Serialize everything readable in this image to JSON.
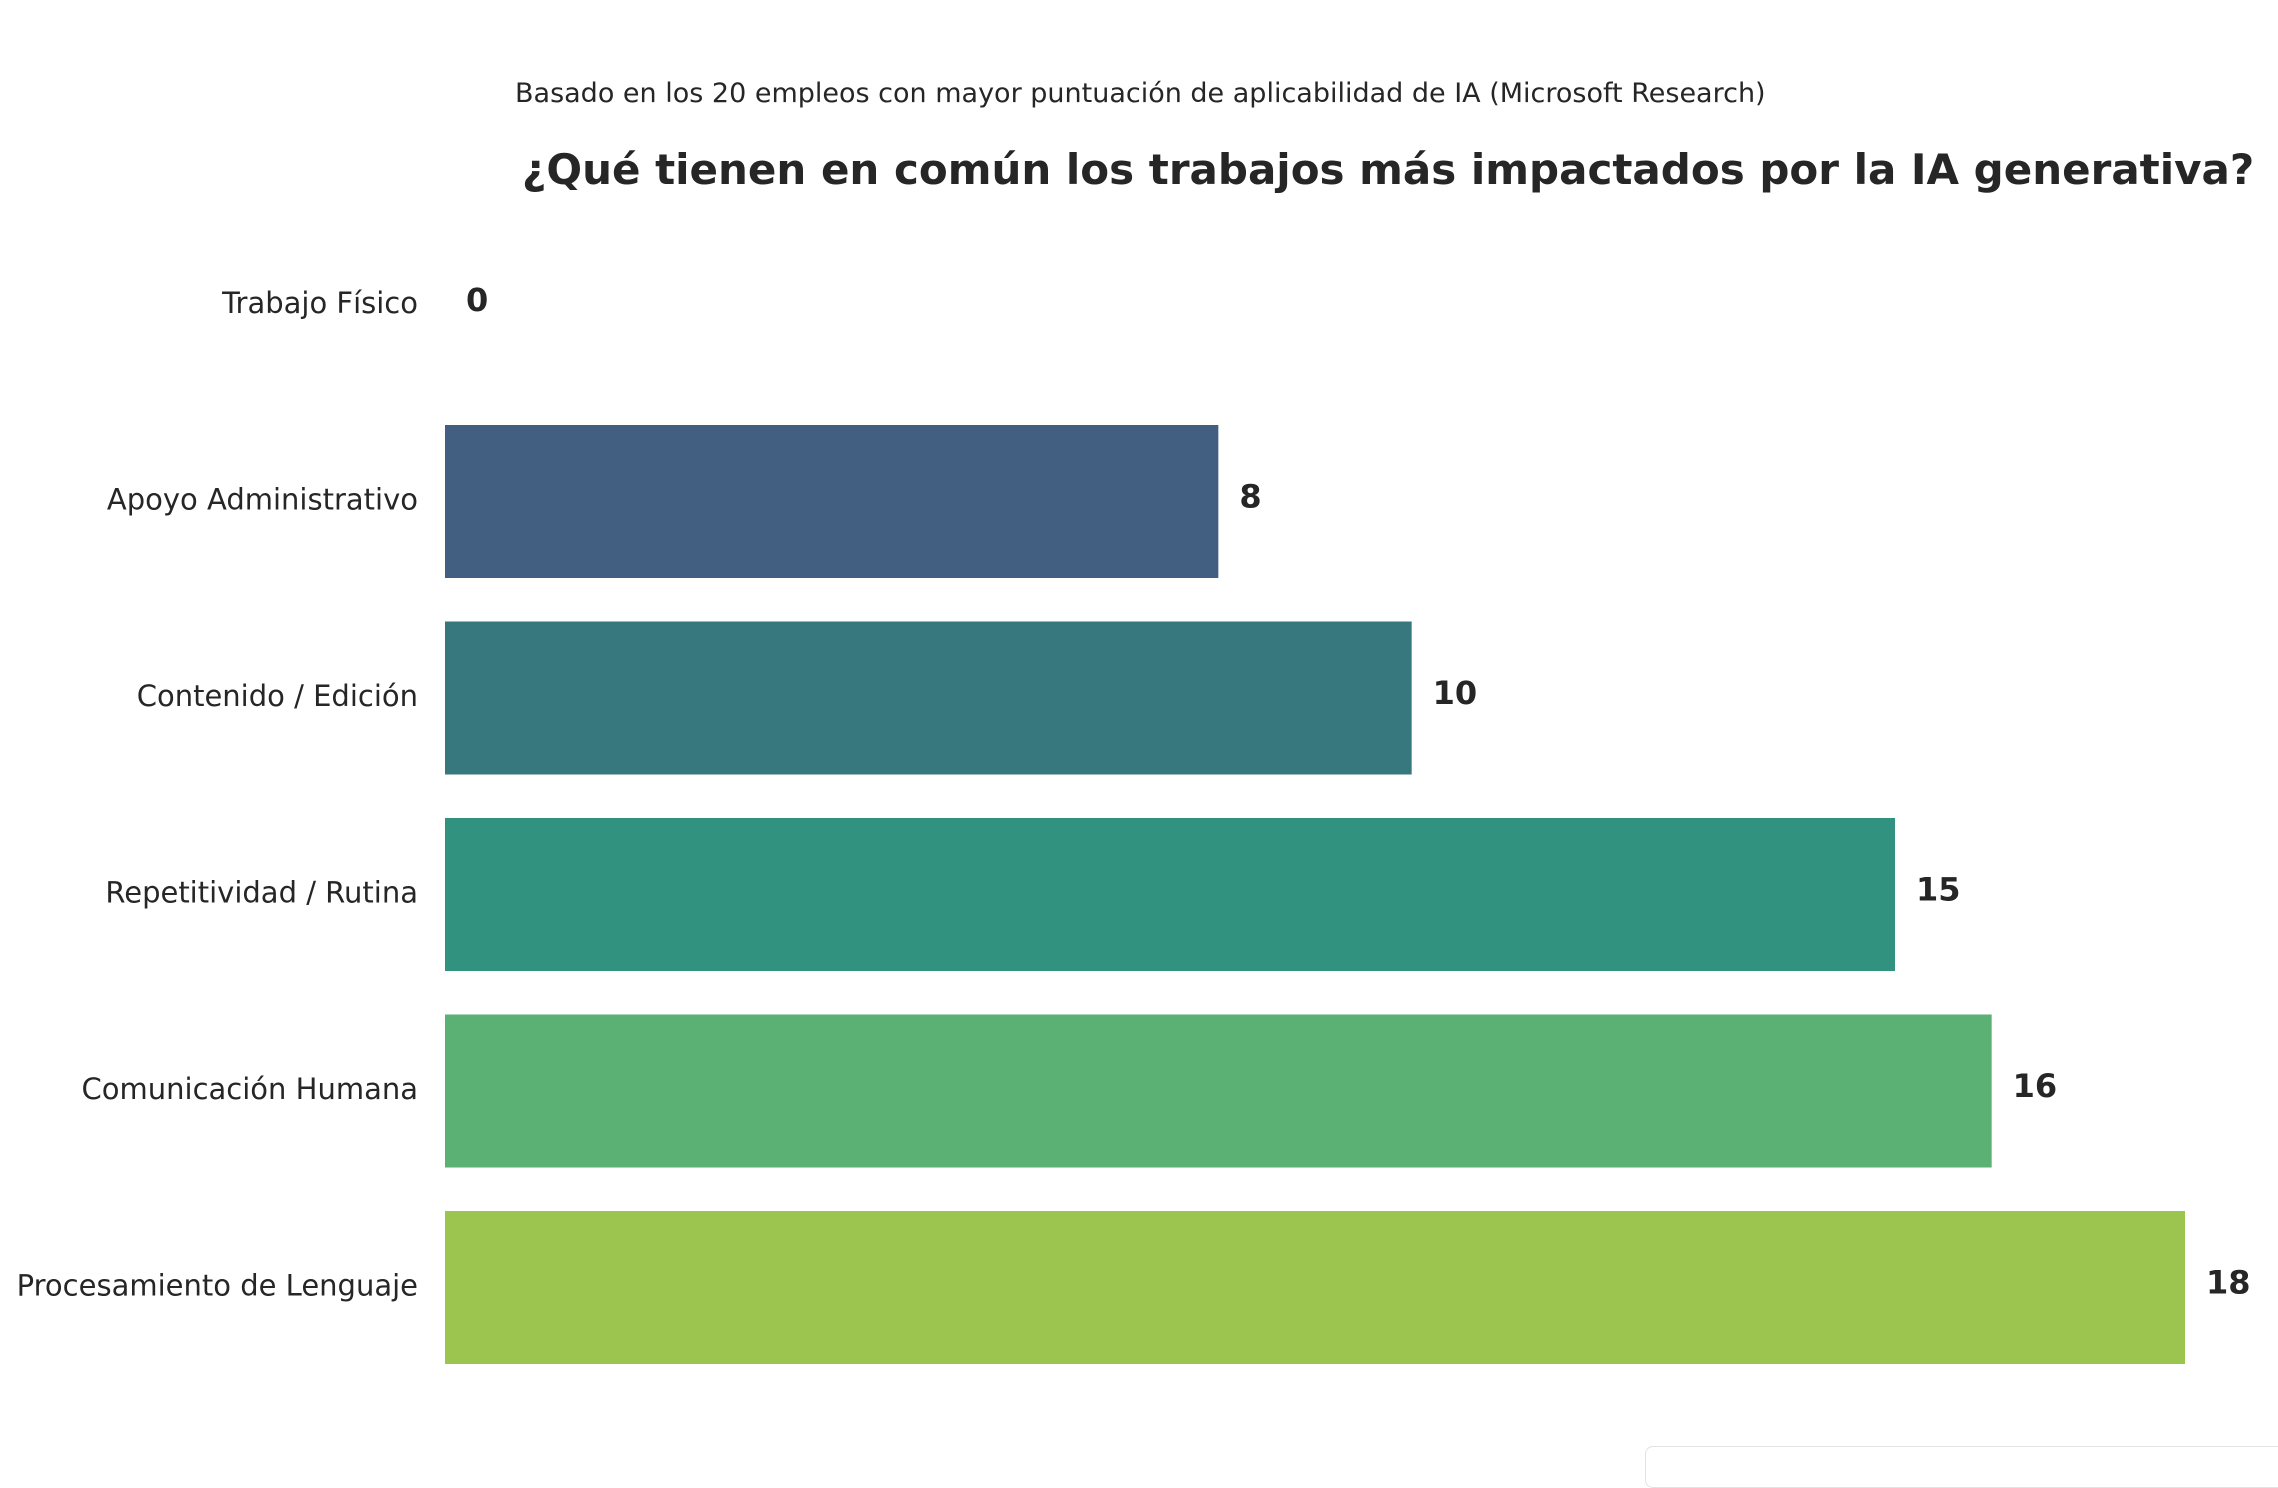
{
  "chart_data": {
    "type": "bar",
    "orientation": "horizontal",
    "subtitle": "Basado en los 20 empleos con mayor puntuación de aplicabilidad de IA (Microsoft Research)",
    "title": "¿Qué tienen en común los trabajos más impactados por la IA generativa?",
    "categories": [
      "Trabajo Físico",
      "Apoyo Administrativo",
      "Contenido / Edición",
      "Repetitividad / Rutina",
      "Comunicación Humana",
      "Procesamiento de Lenguaje"
    ],
    "values": [
      0,
      8,
      10,
      15,
      16,
      18
    ],
    "value_labels": [
      "0",
      "8",
      "10",
      "15",
      "16",
      "18"
    ],
    "colors": [
      "#440154",
      "#425e80",
      "#37777e",
      "#31927f",
      "#5ab173",
      "#9bc54e"
    ],
    "xlabel": "",
    "ylabel": "",
    "xlim": [
      0,
      18
    ],
    "grid": false,
    "legend": "none"
  }
}
